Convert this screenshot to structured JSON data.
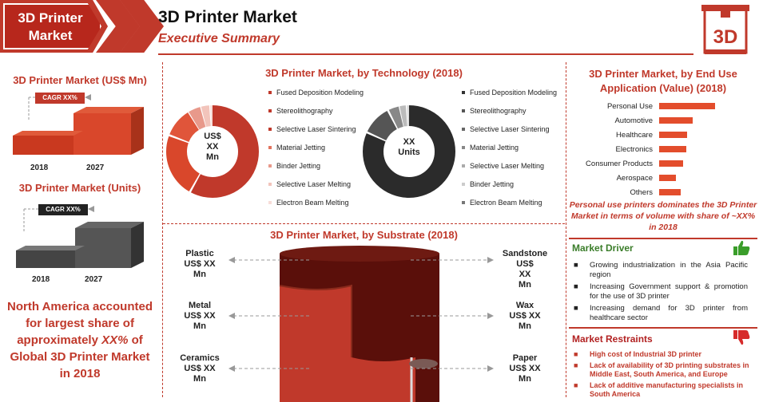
{
  "header": {
    "banner": "3D Printer Market",
    "title": "3D Printer Market",
    "subtitle": "Executive Summary",
    "logo_text": "3D"
  },
  "left": {
    "usd_title": "3D Printer Market (US$ Mn)",
    "usd_cagr": "CAGR XX%",
    "usd_years": [
      "2018",
      "2027"
    ],
    "units_title": "3D Printer Market (Units)",
    "units_cagr": "CAGR XX%",
    "units_years": [
      "2018",
      "2027"
    ],
    "note": "North America accounted for largest share of approximately XX% of Global 3D Printer Market in 2018",
    "note_parts": {
      "line1": "North America accounted",
      "line2": "for largest share of",
      "line3a": "approximately ",
      "line3b": "XX%",
      "line3c": " of",
      "line4": "Global 3D Printer Market",
      "line5": "in 2018"
    }
  },
  "technology": {
    "title": "3D Printer Market, by Technology (2018)",
    "donut1_label": [
      "US$",
      "XX",
      "Mn"
    ],
    "donut2_label": [
      "XX",
      "Units"
    ],
    "legend1": [
      {
        "label": "Fused Deposition Modeling",
        "color": "#c0392b"
      },
      {
        "label": "Stereolithography",
        "color": "#c0392b"
      },
      {
        "label": "Selective Laser Sintering",
        "color": "#c0392b"
      },
      {
        "label": "Material Jetting",
        "color": "#e3745f"
      },
      {
        "label": "Binder Jetting",
        "color": "#e8998b"
      },
      {
        "label": "Selective Laser Melting",
        "color": "#f2c4bb"
      },
      {
        "label": "Electron Beam Melting",
        "color": "#f7ddd8"
      }
    ],
    "legend2": [
      {
        "label": "Fused Deposition Modeling",
        "color": "#333333"
      },
      {
        "label": "Stereolithography",
        "color": "#555555"
      },
      {
        "label": "Selective Laser Sintering",
        "color": "#666666"
      },
      {
        "label": "Material Jetting",
        "color": "#888888"
      },
      {
        "label": "Selective Laser Melting",
        "color": "#aaaaaa"
      },
      {
        "label": "Binder Jetting",
        "color": "#cccccc"
      },
      {
        "label": "Electron Beam Melting",
        "color": "#777777"
      }
    ]
  },
  "end_use": {
    "title": "3D Printer Market, by End Use Application (Value) (2018)",
    "items": [
      {
        "label": "Personal Use",
        "value": 1.0
      },
      {
        "label": "Automotive",
        "value": 0.6
      },
      {
        "label": "Healthcare",
        "value": 0.5
      },
      {
        "label": "Electronics",
        "value": 0.48
      },
      {
        "label": "Consumer Products",
        "value": 0.42
      },
      {
        "label": "Aerospace",
        "value": 0.3
      },
      {
        "label": "Others",
        "value": 0.38
      }
    ],
    "note": "Personal use printers dominates the 3D Printer Market in terms of volume with share of ~XX% in 2018"
  },
  "substrate": {
    "title": "3D Printer Market, by Substrate (2018)",
    "left": [
      {
        "name": "Plastic",
        "value": "US$ XX",
        "unit": "Mn"
      },
      {
        "name": "Metal",
        "value": "US$ XX",
        "unit": "Mn"
      },
      {
        "name": "Ceramics",
        "value": "US$ XX",
        "unit": "Mn"
      }
    ],
    "right": [
      {
        "name": "Sandstone",
        "value": "US$",
        "extra": "XX",
        "unit": "Mn"
      },
      {
        "name": "Wax",
        "value": "US$ XX",
        "unit": "Mn"
      },
      {
        "name": "Paper",
        "value": "US$ XX",
        "unit": "Mn"
      }
    ]
  },
  "driver": {
    "title": "Market Driver",
    "items": [
      "Growing industrialization in the Asia Pacific region",
      "Increasing Government support & promotion for the use of 3D printer",
      "Increasing demand for 3D printer from healthcare sector"
    ]
  },
  "restraints": {
    "title": "Market Restraints",
    "items": [
      "High cost of Industrial 3D printer",
      "Lack of availability of 3D printing substrates in Middle East, South America, and Europe",
      "Lack of additive manufacturing specialists in South America"
    ]
  }
}
